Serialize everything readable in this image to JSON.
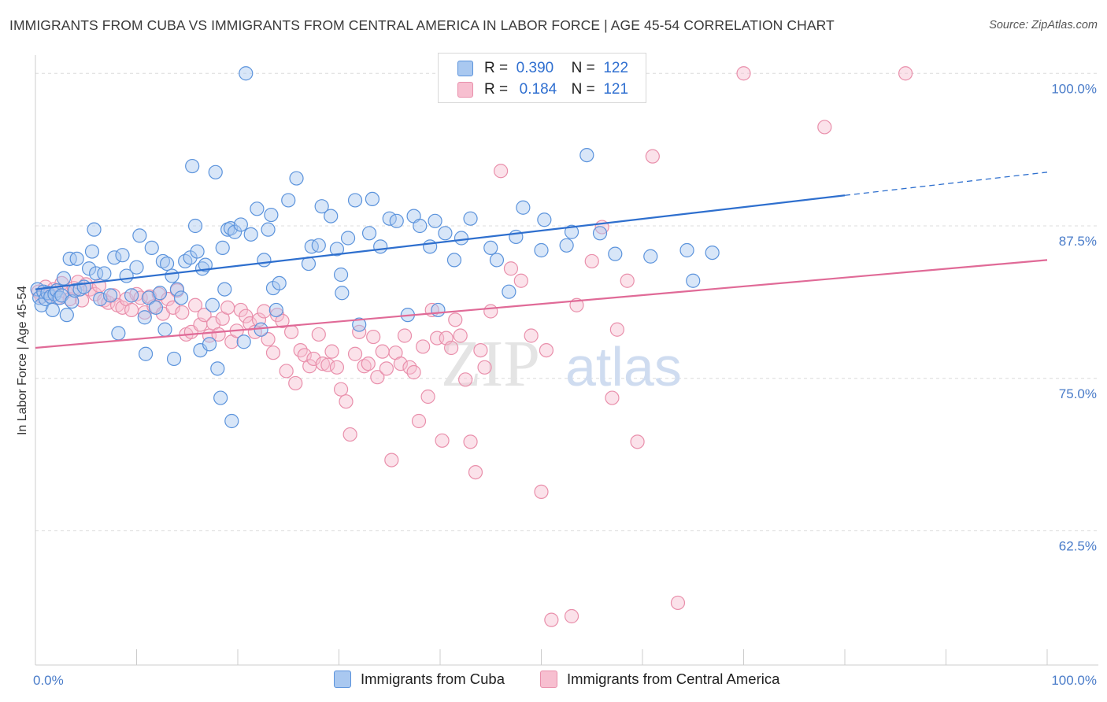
{
  "title": "IMMIGRANTS FROM CUBA VS IMMIGRANTS FROM CENTRAL AMERICA IN LABOR FORCE | AGE 45-54 CORRELATION CHART",
  "source": "Source: ZipAtlas.com",
  "watermark": {
    "zip": "ZIP",
    "atlas": "atlas"
  },
  "legend": {
    "rows": [
      {
        "r_label": "R =",
        "r_value": "0.390",
        "n_label": "N =",
        "n_value": "122"
      },
      {
        "r_label": "R =",
        "r_value": "0.184",
        "n_label": "N =",
        "n_value": "121"
      }
    ]
  },
  "bottom_legend": [
    "Immigrants from Cuba",
    "Immigrants from Central America"
  ],
  "colors": {
    "cuba_fill": "#a9c8f0",
    "cuba_stroke": "#5b93dc",
    "cuba_line": "#2e6fce",
    "ca_fill": "#f7bfd0",
    "ca_stroke": "#e98fab",
    "ca_line": "#e06a97",
    "grid": "#dcdcdc",
    "tick_text": "#4a7cc9"
  },
  "chart_data": {
    "type": "scatter",
    "title": "IMMIGRANTS FROM CUBA VS IMMIGRANTS FROM CENTRAL AMERICA IN LABOR FORCE | AGE 45-54 CORRELATION CHART",
    "xlabel": "",
    "ylabel": "In Labor Force | Age 45-54",
    "xlim": [
      0,
      100
    ],
    "ylim": [
      51.5,
      101.5
    ],
    "x_tick_labels": [
      "0.0%",
      "100.0%"
    ],
    "y_ticks": [
      62.5,
      75.0,
      87.5,
      100.0
    ],
    "y_tick_labels": [
      "62.5%",
      "75.0%",
      "87.5%",
      "100.0%"
    ],
    "grid": true,
    "legend_position": "top-center",
    "series": [
      {
        "name": "Immigrants from Cuba",
        "R": 0.39,
        "N": 122,
        "trend": {
          "x_start": 0,
          "y_start": 82.3,
          "x_solid_end": 80,
          "y_solid_end": 90.0,
          "x_end": 100,
          "y_end": 91.9
        },
        "points": [
          [
            0.2,
            82.3
          ],
          [
            0.4,
            81.6
          ],
          [
            0.6,
            81.0
          ],
          [
            0.8,
            82.1
          ],
          [
            1.0,
            81.5
          ],
          [
            1.2,
            82.0
          ],
          [
            1.5,
            81.7
          ],
          [
            1.7,
            80.6
          ],
          [
            1.9,
            81.9
          ],
          [
            2.1,
            82.2
          ],
          [
            2.4,
            81.6
          ],
          [
            2.6,
            81.8
          ],
          [
            2.8,
            83.2
          ],
          [
            3.1,
            80.2
          ],
          [
            3.4,
            84.8
          ],
          [
            3.6,
            81.3
          ],
          [
            3.9,
            82.2
          ],
          [
            4.1,
            84.8
          ],
          [
            4.4,
            82.3
          ],
          [
            4.8,
            82.5
          ],
          [
            5.3,
            84.0
          ],
          [
            5.6,
            85.4
          ],
          [
            5.8,
            87.2
          ],
          [
            6.0,
            83.6
          ],
          [
            6.4,
            81.5
          ],
          [
            6.8,
            83.6
          ],
          [
            7.4,
            81.8
          ],
          [
            7.8,
            84.9
          ],
          [
            8.2,
            78.7
          ],
          [
            8.6,
            85.1
          ],
          [
            9.0,
            83.4
          ],
          [
            9.5,
            81.8
          ],
          [
            10.0,
            84.1
          ],
          [
            10.3,
            86.7
          ],
          [
            10.8,
            80.0
          ],
          [
            10.9,
            77.0
          ],
          [
            11.2,
            81.6
          ],
          [
            11.5,
            85.7
          ],
          [
            11.9,
            80.8
          ],
          [
            12.3,
            82.0
          ],
          [
            12.6,
            84.6
          ],
          [
            12.8,
            79.0
          ],
          [
            13.0,
            84.4
          ],
          [
            13.5,
            83.4
          ],
          [
            13.7,
            76.6
          ],
          [
            14.0,
            82.3
          ],
          [
            14.4,
            81.6
          ],
          [
            14.8,
            84.6
          ],
          [
            15.3,
            84.9
          ],
          [
            15.5,
            92.4
          ],
          [
            15.8,
            87.5
          ],
          [
            16.0,
            85.4
          ],
          [
            16.3,
            77.3
          ],
          [
            16.5,
            84.0
          ],
          [
            16.8,
            84.3
          ],
          [
            17.2,
            77.8
          ],
          [
            17.5,
            81.0
          ],
          [
            17.8,
            91.9
          ],
          [
            18.0,
            75.8
          ],
          [
            18.3,
            73.4
          ],
          [
            18.5,
            85.7
          ],
          [
            18.7,
            82.3
          ],
          [
            19.0,
            87.2
          ],
          [
            19.3,
            87.3
          ],
          [
            19.4,
            71.5
          ],
          [
            19.7,
            87.0
          ],
          [
            20.3,
            87.6
          ],
          [
            20.6,
            78.0
          ],
          [
            20.8,
            100.0
          ],
          [
            21.3,
            86.8
          ],
          [
            21.9,
            88.9
          ],
          [
            22.3,
            79.0
          ],
          [
            22.6,
            84.7
          ],
          [
            23.0,
            87.2
          ],
          [
            23.3,
            88.4
          ],
          [
            23.5,
            82.4
          ],
          [
            23.8,
            80.6
          ],
          [
            24.1,
            82.8
          ],
          [
            25.0,
            89.6
          ],
          [
            25.8,
            91.4
          ],
          [
            27.0,
            84.4
          ],
          [
            27.3,
            85.8
          ],
          [
            28.0,
            85.9
          ],
          [
            28.3,
            89.1
          ],
          [
            29.2,
            88.3
          ],
          [
            29.8,
            85.6
          ],
          [
            30.2,
            83.5
          ],
          [
            30.3,
            82.0
          ],
          [
            30.9,
            86.5
          ],
          [
            31.6,
            89.6
          ],
          [
            32.0,
            79.4
          ],
          [
            33.0,
            86.9
          ],
          [
            33.3,
            89.7
          ],
          [
            34.1,
            85.8
          ],
          [
            35.0,
            88.1
          ],
          [
            35.7,
            87.9
          ],
          [
            36.8,
            80.2
          ],
          [
            37.4,
            88.3
          ],
          [
            38.0,
            87.5
          ],
          [
            39.0,
            85.8
          ],
          [
            39.5,
            87.9
          ],
          [
            39.8,
            80.6
          ],
          [
            40.5,
            86.9
          ],
          [
            41.4,
            84.7
          ],
          [
            42.1,
            86.5
          ],
          [
            43.0,
            88.1
          ],
          [
            45.0,
            85.7
          ],
          [
            45.6,
            84.7
          ],
          [
            46.8,
            82.1
          ],
          [
            47.5,
            86.6
          ],
          [
            48.2,
            89.0
          ],
          [
            50.0,
            85.5
          ],
          [
            50.3,
            88.0
          ],
          [
            52.5,
            85.9
          ],
          [
            53.0,
            87.0
          ],
          [
            54.5,
            93.3
          ],
          [
            55.8,
            86.9
          ],
          [
            57.3,
            85.2
          ],
          [
            60.8,
            85.0
          ],
          [
            64.4,
            85.5
          ],
          [
            65.0,
            83.0
          ],
          [
            66.9,
            85.3
          ]
        ]
      },
      {
        "name": "Immigrants from Central America",
        "R": 0.184,
        "N": 121,
        "trend": {
          "x_start": 0,
          "y_start": 77.5,
          "x_end": 100,
          "y_end": 84.7
        },
        "points": [
          [
            0.3,
            82.1
          ],
          [
            0.6,
            81.7
          ],
          [
            1.0,
            82.5
          ],
          [
            1.4,
            81.9
          ],
          [
            1.8,
            82.3
          ],
          [
            2.2,
            81.6
          ],
          [
            2.6,
            82.8
          ],
          [
            3.0,
            82.1
          ],
          [
            3.4,
            81.5
          ],
          [
            3.8,
            82.4
          ],
          [
            4.2,
            82.9
          ],
          [
            4.6,
            81.4
          ],
          [
            5.0,
            82.7
          ],
          [
            5.4,
            82.3
          ],
          [
            5.9,
            81.9
          ],
          [
            6.3,
            82.6
          ],
          [
            6.8,
            81.4
          ],
          [
            7.2,
            81.2
          ],
          [
            7.7,
            81.8
          ],
          [
            8.1,
            81.0
          ],
          [
            8.6,
            80.8
          ],
          [
            9.0,
            81.5
          ],
          [
            9.5,
            80.6
          ],
          [
            10.0,
            81.9
          ],
          [
            10.4,
            81.6
          ],
          [
            10.8,
            80.4
          ],
          [
            11.3,
            81.7
          ],
          [
            11.7,
            80.9
          ],
          [
            12.2,
            81.9
          ],
          [
            12.6,
            80.3
          ],
          [
            13.1,
            81.5
          ],
          [
            13.6,
            80.8
          ],
          [
            14.0,
            82.2
          ],
          [
            14.5,
            80.4
          ],
          [
            14.9,
            78.6
          ],
          [
            15.4,
            78.8
          ],
          [
            15.8,
            81.0
          ],
          [
            16.3,
            79.4
          ],
          [
            16.7,
            80.2
          ],
          [
            17.2,
            78.5
          ],
          [
            17.6,
            79.5
          ],
          [
            18.1,
            78.6
          ],
          [
            18.5,
            79.9
          ],
          [
            19.0,
            80.8
          ],
          [
            19.4,
            78.0
          ],
          [
            19.9,
            78.9
          ],
          [
            20.3,
            80.6
          ],
          [
            20.8,
            80.1
          ],
          [
            21.2,
            79.5
          ],
          [
            21.7,
            78.8
          ],
          [
            22.1,
            79.8
          ],
          [
            22.6,
            80.5
          ],
          [
            23.0,
            78.2
          ],
          [
            23.5,
            77.1
          ],
          [
            23.9,
            80.2
          ],
          [
            24.4,
            79.7
          ],
          [
            24.8,
            75.6
          ],
          [
            25.3,
            78.8
          ],
          [
            25.7,
            74.6
          ],
          [
            26.2,
            77.3
          ],
          [
            26.6,
            76.9
          ],
          [
            27.1,
            76.0
          ],
          [
            27.5,
            76.6
          ],
          [
            28.0,
            78.6
          ],
          [
            28.4,
            76.2
          ],
          [
            28.9,
            76.1
          ],
          [
            29.3,
            77.2
          ],
          [
            29.8,
            75.9
          ],
          [
            30.2,
            74.1
          ],
          [
            30.7,
            73.1
          ],
          [
            31.1,
            70.4
          ],
          [
            31.6,
            77.0
          ],
          [
            32.0,
            78.8
          ],
          [
            32.5,
            76.0
          ],
          [
            32.9,
            76.2
          ],
          [
            33.4,
            78.4
          ],
          [
            33.8,
            75.1
          ],
          [
            34.3,
            77.2
          ],
          [
            34.7,
            75.8
          ],
          [
            35.2,
            68.3
          ],
          [
            35.6,
            77.1
          ],
          [
            36.1,
            76.2
          ],
          [
            36.5,
            78.5
          ],
          [
            37.0,
            75.9
          ],
          [
            37.4,
            75.5
          ],
          [
            37.9,
            71.5
          ],
          [
            38.3,
            77.6
          ],
          [
            38.8,
            73.5
          ],
          [
            39.2,
            80.6
          ],
          [
            39.7,
            78.3
          ],
          [
            40.2,
            69.9
          ],
          [
            40.6,
            78.3
          ],
          [
            41.1,
            77.5
          ],
          [
            41.5,
            79.8
          ],
          [
            42.0,
            78.5
          ],
          [
            42.5,
            74.9
          ],
          [
            43.0,
            69.8
          ],
          [
            43.5,
            67.3
          ],
          [
            44.0,
            77.3
          ],
          [
            44.4,
            75.9
          ],
          [
            45.0,
            80.5
          ],
          [
            46.0,
            92.0
          ],
          [
            47.0,
            84.0
          ],
          [
            48.0,
            83.0
          ],
          [
            49.0,
            78.5
          ],
          [
            50.0,
            65.7
          ],
          [
            50.5,
            77.3
          ],
          [
            51.0,
            55.2
          ],
          [
            53.0,
            55.5
          ],
          [
            53.5,
            81.0
          ],
          [
            55.0,
            84.6
          ],
          [
            56.0,
            87.4
          ],
          [
            57.0,
            73.4
          ],
          [
            57.5,
            79.0
          ],
          [
            58.5,
            83.0
          ],
          [
            59.5,
            69.8
          ],
          [
            61.0,
            93.2
          ],
          [
            63.5,
            56.6
          ],
          [
            70.0,
            100.0
          ],
          [
            78.0,
            95.6
          ],
          [
            86.0,
            100.0
          ]
        ]
      }
    ]
  }
}
